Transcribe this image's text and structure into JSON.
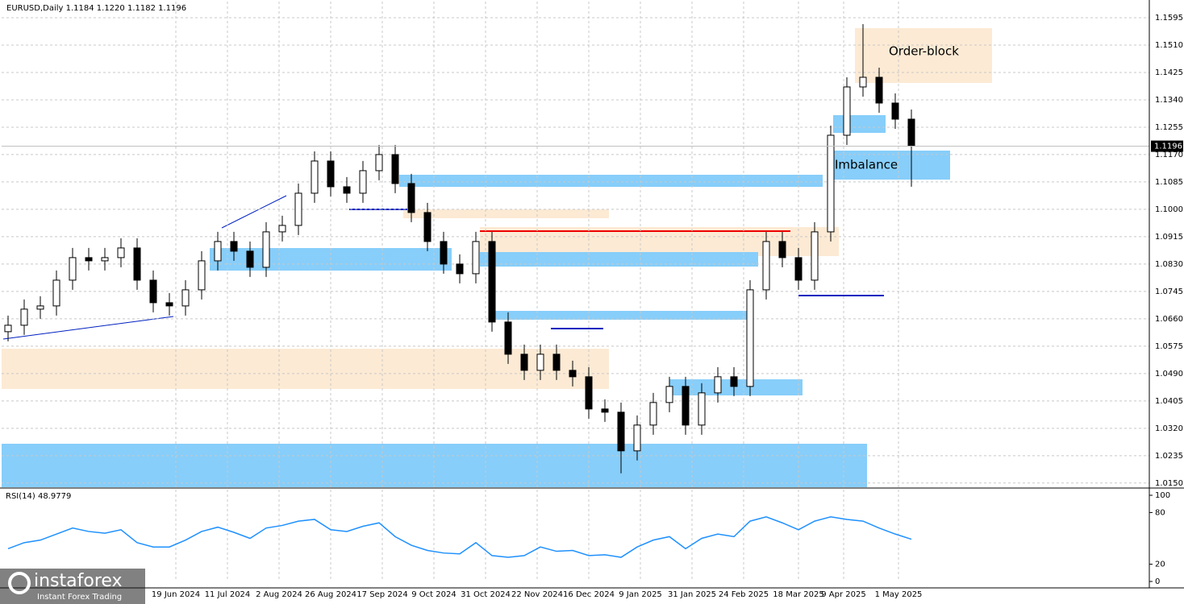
{
  "chart_data": [
    {
      "type": "candlestick",
      "title": "EURUSD,Daily  1.1184 1.1220 1.1182 1.1196",
      "annotations": [
        "Order-block",
        "Imbalance"
      ],
      "current_price": 1.1196,
      "logo": "instaforex",
      "logo_tagline": "Instant Forex Trading",
      "x": [
        2,
        7,
        12,
        17,
        22,
        27,
        32,
        37,
        42,
        47,
        52,
        57,
        62,
        67,
        72,
        77,
        82,
        87,
        92,
        97,
        102,
        107,
        112,
        117,
        122,
        127,
        132,
        137,
        142,
        147,
        152,
        157,
        162,
        167,
        172,
        177,
        182,
        187,
        192,
        197,
        202,
        207,
        212,
        217,
        222,
        227,
        232,
        237,
        242,
        247,
        252,
        257,
        262,
        267,
        272,
        277,
        282
      ],
      "open": [
        1.062,
        1.064,
        1.069,
        1.07,
        1.078,
        1.085,
        1.084,
        1.085,
        1.088,
        1.078,
        1.071,
        1.07,
        1.075,
        1.084,
        1.09,
        1.087,
        1.082,
        1.093,
        1.095,
        1.105,
        1.115,
        1.107,
        1.105,
        1.112,
        1.117,
        1.108,
        1.099,
        1.09,
        1.083,
        1.08,
        1.09,
        1.065,
        1.055,
        1.05,
        1.055,
        1.05,
        1.048,
        1.038,
        1.037,
        1.025,
        1.033,
        1.04,
        1.045,
        1.033,
        1.043,
        1.048,
        1.045,
        1.075,
        1.09,
        1.085,
        1.078,
        1.093,
        1.123,
        1.138,
        1.141,
        1.133,
        1.128
      ],
      "high": [
        1.067,
        1.072,
        1.073,
        1.081,
        1.088,
        1.088,
        1.088,
        1.091,
        1.091,
        1.081,
        1.074,
        1.078,
        1.087,
        1.093,
        1.093,
        1.09,
        1.096,
        1.098,
        1.108,
        1.118,
        1.118,
        1.11,
        1.115,
        1.12,
        1.12,
        1.111,
        1.102,
        1.093,
        1.086,
        1.093,
        1.093,
        1.068,
        1.058,
        1.058,
        1.058,
        1.053,
        1.051,
        1.041,
        1.04,
        1.036,
        1.043,
        1.048,
        1.048,
        1.046,
        1.051,
        1.051,
        1.078,
        1.093,
        1.093,
        1.088,
        1.096,
        1.126,
        1.141,
        1.1575,
        1.144,
        1.136,
        1.131
      ],
      "low": [
        1.059,
        1.061,
        1.066,
        1.067,
        1.075,
        1.081,
        1.081,
        1.082,
        1.075,
        1.068,
        1.067,
        1.067,
        1.072,
        1.081,
        1.084,
        1.079,
        1.079,
        1.09,
        1.092,
        1.102,
        1.104,
        1.102,
        1.102,
        1.109,
        1.105,
        1.096,
        1.087,
        1.08,
        1.077,
        1.077,
        1.062,
        1.052,
        1.047,
        1.047,
        1.047,
        1.045,
        1.035,
        1.034,
        1.018,
        1.022,
        1.03,
        1.037,
        1.03,
        1.03,
        1.04,
        1.042,
        1.042,
        1.072,
        1.082,
        1.075,
        1.075,
        1.09,
        1.12,
        1.135,
        1.13,
        1.125,
        1.107
      ],
      "close": [
        1.064,
        1.069,
        1.07,
        1.078,
        1.085,
        1.084,
        1.085,
        1.088,
        1.078,
        1.071,
        1.07,
        1.075,
        1.084,
        1.09,
        1.087,
        1.082,
        1.093,
        1.095,
        1.105,
        1.115,
        1.107,
        1.105,
        1.112,
        1.117,
        1.108,
        1.099,
        1.09,
        1.083,
        1.08,
        1.09,
        1.065,
        1.055,
        1.05,
        1.055,
        1.05,
        1.048,
        1.038,
        1.037,
        1.025,
        1.033,
        1.04,
        1.045,
        1.033,
        1.043,
        1.048,
        1.045,
        1.075,
        1.09,
        1.085,
        1.078,
        1.093,
        1.123,
        1.138,
        1.141,
        1.133,
        1.128,
        1.1196
      ],
      "up_color": "#000000",
      "down_color": "#000000",
      "xlim": [
        0,
        355.75
      ],
      "xticks": [
        {
          "value": 54,
          "label": "19 Jun 2024"
        },
        {
          "value": 70,
          "label": "11 Jul 2024"
        },
        {
          "value": 86,
          "label": "2 Aug 2024"
        },
        {
          "value": 102,
          "label": "26 Aug 2024"
        },
        {
          "value": 118,
          "label": "17 Sep 2024"
        },
        {
          "value": 134,
          "label": "9 Oct 2024"
        },
        {
          "value": 150,
          "label": "31 Oct 2024"
        },
        {
          "value": 166,
          "label": "22 Nov 2024"
        },
        {
          "value": 182,
          "label": "16 Dec 2024"
        },
        {
          "value": 198,
          "label": "9 Jan 2025"
        },
        {
          "value": 214,
          "label": "31 Jan 2025"
        },
        {
          "value": 230,
          "label": "24 Feb 2025"
        },
        {
          "value": 247,
          "label": "18 Mar 2025"
        },
        {
          "value": 261,
          "label": "9 Apr 2025"
        },
        {
          "value": 278,
          "label": "1 May 2025"
        }
      ],
      "ylim": [
        1.0137,
        1.1645
      ],
      "yticks": [
        1.1595,
        {
          "value": 1.151,
          "label": "1.1510"
        },
        1.1425,
        {
          "value": 1.134,
          "label": "1.1340"
        },
        1.1255,
        {
          "value": 1.117,
          "label": "1.1170"
        },
        1.1085,
        {
          "value": 1.1,
          "label": "1.1000"
        },
        1.0915,
        {
          "value": 1.083,
          "label": "1.0830"
        },
        1.0745,
        {
          "value": 1.066,
          "label": "1.0660"
        },
        1.0575,
        {
          "value": 1.049,
          "label": "1.0490"
        },
        1.0405,
        {
          "value": 1.032,
          "label": "1.0320"
        },
        1.0235,
        {
          "value": 1.015,
          "label": "1.0150"
        }
      ],
      "grid": true
    },
    {
      "type": "line",
      "title": "RSI(14) 48.9779",
      "x": [
        2,
        7,
        12,
        17,
        22,
        27,
        32,
        37,
        42,
        47,
        52,
        57,
        62,
        67,
        72,
        77,
        82,
        87,
        92,
        97,
        102,
        107,
        112,
        117,
        122,
        127,
        132,
        137,
        142,
        147,
        152,
        157,
        162,
        167,
        172,
        177,
        182,
        187,
        192,
        197,
        202,
        207,
        212,
        217,
        222,
        227,
        232,
        237,
        242,
        247,
        252,
        257,
        262,
        267,
        272,
        277,
        282
      ],
      "series": [
        {
          "color": "#1e90ff",
          "values": [
            38,
            45,
            48,
            55,
            62,
            58,
            56,
            60,
            45,
            40,
            40,
            48,
            58,
            63,
            57,
            50,
            62,
            65,
            70,
            72,
            60,
            58,
            64,
            68,
            52,
            42,
            36,
            33,
            32,
            45,
            30,
            28,
            30,
            40,
            35,
            36,
            30,
            31,
            28,
            40,
            48,
            52,
            38,
            50,
            55,
            52,
            70,
            75,
            68,
            60,
            70,
            75,
            72,
            70,
            62,
            55,
            49
          ]
        }
      ],
      "xlim": [
        0,
        355.75
      ],
      "ylim": [
        0,
        100
      ],
      "yticks": [
        0,
        20,
        80,
        100
      ]
    }
  ]
}
